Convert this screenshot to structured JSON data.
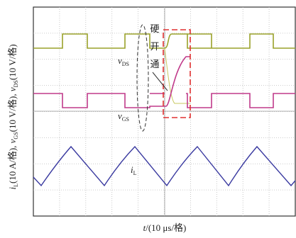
{
  "y_axis_label": {
    "parts": [
      "i",
      "L",
      "(10 A/格), ",
      "v",
      "GS",
      "(10 V/格), ",
      "v",
      "DS",
      "(10 V/格)"
    ]
  },
  "x_axis_label": {
    "parts": [
      "t",
      "/(10 μs/格)"
    ]
  },
  "annotations": {
    "hard_turn_on": [
      "硬",
      "开",
      "通"
    ],
    "v_ds": [
      "v",
      "DS"
    ],
    "v_gs": [
      "v",
      "GS"
    ],
    "i_l": [
      "i",
      "L"
    ]
  }
}
